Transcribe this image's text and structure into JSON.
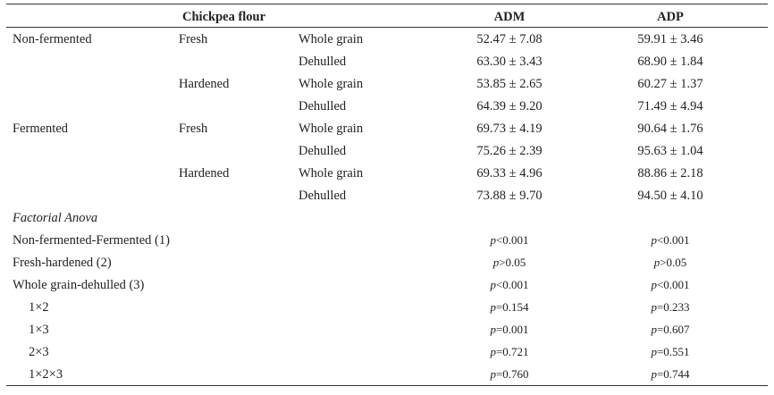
{
  "header": {
    "flour": "Chickpea flour",
    "adm": "ADM",
    "adp": "ADP"
  },
  "rows": [
    {
      "group": "Non-fermented",
      "state": "Fresh",
      "type": "Whole grain",
      "adm": "52.47 ± 7.08",
      "adp": "59.91 ± 3.46"
    },
    {
      "group": "",
      "state": "",
      "type": "Dehulled",
      "adm": "63.30 ± 3.43",
      "adp": "68.90 ± 1.84"
    },
    {
      "group": "",
      "state": "Hardened",
      "type": "Whole grain",
      "adm": "53.85 ± 2.65",
      "adp": "60.27 ± 1.37"
    },
    {
      "group": "",
      "state": "",
      "type": "Dehulled",
      "adm": "64.39 ± 9.20",
      "adp": "71.49 ± 4.94"
    },
    {
      "group": "Fermented",
      "state": "Fresh",
      "type": "Whole grain",
      "adm": "69.73 ± 4.19",
      "adp": "90.64 ± 1.76"
    },
    {
      "group": "",
      "state": "",
      "type": "Dehulled",
      "adm": "75.26 ± 2.39",
      "adp": "95.63 ± 1.04"
    },
    {
      "group": "",
      "state": "Hardened",
      "type": "Whole grain",
      "adm": "69.33 ± 4.96",
      "adp": "88.86 ± 2.18"
    },
    {
      "group": "",
      "state": "",
      "type": "Dehulled",
      "adm": "73.88 ± 9.70",
      "adp": "94.50 ± 4.10"
    }
  ],
  "anova": {
    "title": "Factorial Anova",
    "rows": [
      {
        "label": "Non-fermented-Fermented (1)",
        "adm": "<0.001",
        "adp": "<0.001"
      },
      {
        "label": "Fresh-hardened (2)",
        "adm": ">0.05",
        "adp": ">0.05"
      },
      {
        "label": "Whole grain-dehulled (3)",
        "adm": "<0.001",
        "adp": "<0.001"
      },
      {
        "label": "1×2",
        "adm": "=0.154",
        "adp": "=0.233"
      },
      {
        "label": "1×3",
        "adm": "=0.001",
        "adp": "=0.607"
      },
      {
        "label": "2×3",
        "adm": "=0.721",
        "adp": "=0.551"
      },
      {
        "label": "1×2×3",
        "adm": "=0.760",
        "adp": "=0.744"
      }
    ],
    "p_symbol": "p"
  }
}
